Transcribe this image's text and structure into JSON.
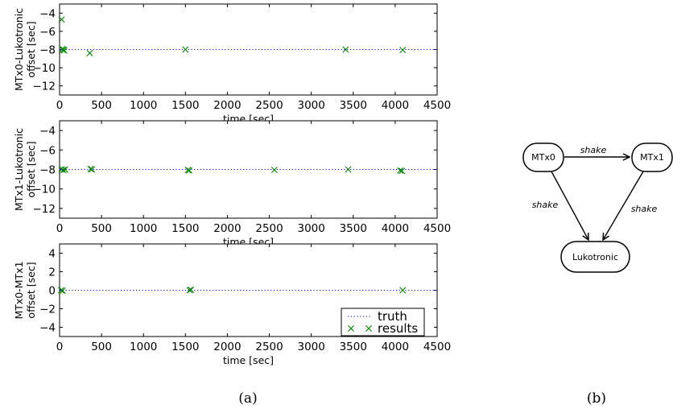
{
  "chart_data": [
    {
      "type": "scatter",
      "ylabel": "MTx0-Lukotronic\noffset [sec]",
      "xlabel": "time [sec]",
      "xlim": [
        0,
        4500
      ],
      "ylim": [
        -13,
        -3
      ],
      "xticks": [
        0,
        500,
        1000,
        1500,
        2000,
        2500,
        3000,
        3500,
        4000,
        4500
      ],
      "yticks": [
        -4,
        -6,
        -8,
        -10,
        -12
      ],
      "series": [
        {
          "name": "truth",
          "style": "dotted-line",
          "color": "#0000ff",
          "x": [
            0,
            4500
          ],
          "y": [
            -8,
            -8
          ]
        },
        {
          "name": "results",
          "style": "x-marker",
          "color": "#008000",
          "x": [
            25,
            30,
            40,
            45,
            55,
            360,
            1500,
            3410,
            4090
          ],
          "y": [
            -4.7,
            -7.95,
            -8.05,
            -8.0,
            -8.1,
            -8.4,
            -8.0,
            -8.0,
            -8.05
          ]
        }
      ]
    },
    {
      "type": "scatter",
      "ylabel": "MTx1-Lukotronic\noffset [sec]",
      "xlabel": "time [sec]",
      "xlim": [
        0,
        4500
      ],
      "ylim": [
        -13,
        -3
      ],
      "xticks": [
        0,
        500,
        1000,
        1500,
        2000,
        2500,
        3000,
        3500,
        4000,
        4500
      ],
      "yticks": [
        -4,
        -6,
        -8,
        -10,
        -12
      ],
      "series": [
        {
          "name": "truth",
          "style": "dotted-line",
          "color": "#0000ff",
          "x": [
            0,
            4500
          ],
          "y": [
            -8,
            -8
          ]
        },
        {
          "name": "results",
          "style": "x-marker",
          "color": "#008000",
          "x": [
            25,
            45,
            65,
            370,
            385,
            1530,
            1545,
            2560,
            3440,
            4060,
            4080
          ],
          "y": [
            -8.0,
            -8.05,
            -8.0,
            -7.95,
            -8.0,
            -8.05,
            -8.1,
            -8.05,
            -8.0,
            -8.1,
            -8.15
          ]
        }
      ]
    },
    {
      "type": "scatter",
      "ylabel": "MTx0-MTx1\noffset [sec]",
      "xlabel": "time [sec]",
      "xlim": [
        0,
        4500
      ],
      "ylim": [
        -5,
        5
      ],
      "xticks": [
        0,
        500,
        1000,
        1500,
        2000,
        2500,
        3000,
        3500,
        4000,
        4500
      ],
      "yticks": [
        4,
        2,
        0,
        -2,
        -4
      ],
      "legend": {
        "position": "lower-right",
        "entries": [
          "truth",
          "results"
        ]
      },
      "series": [
        {
          "name": "truth",
          "style": "dotted-line",
          "color": "#0000ff",
          "x": [
            0,
            4500
          ],
          "y": [
            0,
            0
          ]
        },
        {
          "name": "results",
          "style": "x-marker",
          "color": "#008000",
          "x": [
            20,
            35,
            1550,
            1565,
            4090
          ],
          "y": [
            0,
            -0.05,
            0,
            0.05,
            0
          ]
        }
      ]
    }
  ],
  "captions": {
    "a": "(a)",
    "b": "(b)"
  },
  "diagram": {
    "nodes": [
      {
        "id": "mtx0",
        "label": "MTx0"
      },
      {
        "id": "mtx1",
        "label": "MTx1"
      },
      {
        "id": "luk",
        "label": "Lukotronic"
      }
    ],
    "edges": [
      {
        "from": "mtx0",
        "to": "mtx1",
        "label": "shake"
      },
      {
        "from": "mtx0",
        "to": "luk",
        "label": "shake"
      },
      {
        "from": "mtx1",
        "to": "luk",
        "label": "shake"
      }
    ]
  }
}
